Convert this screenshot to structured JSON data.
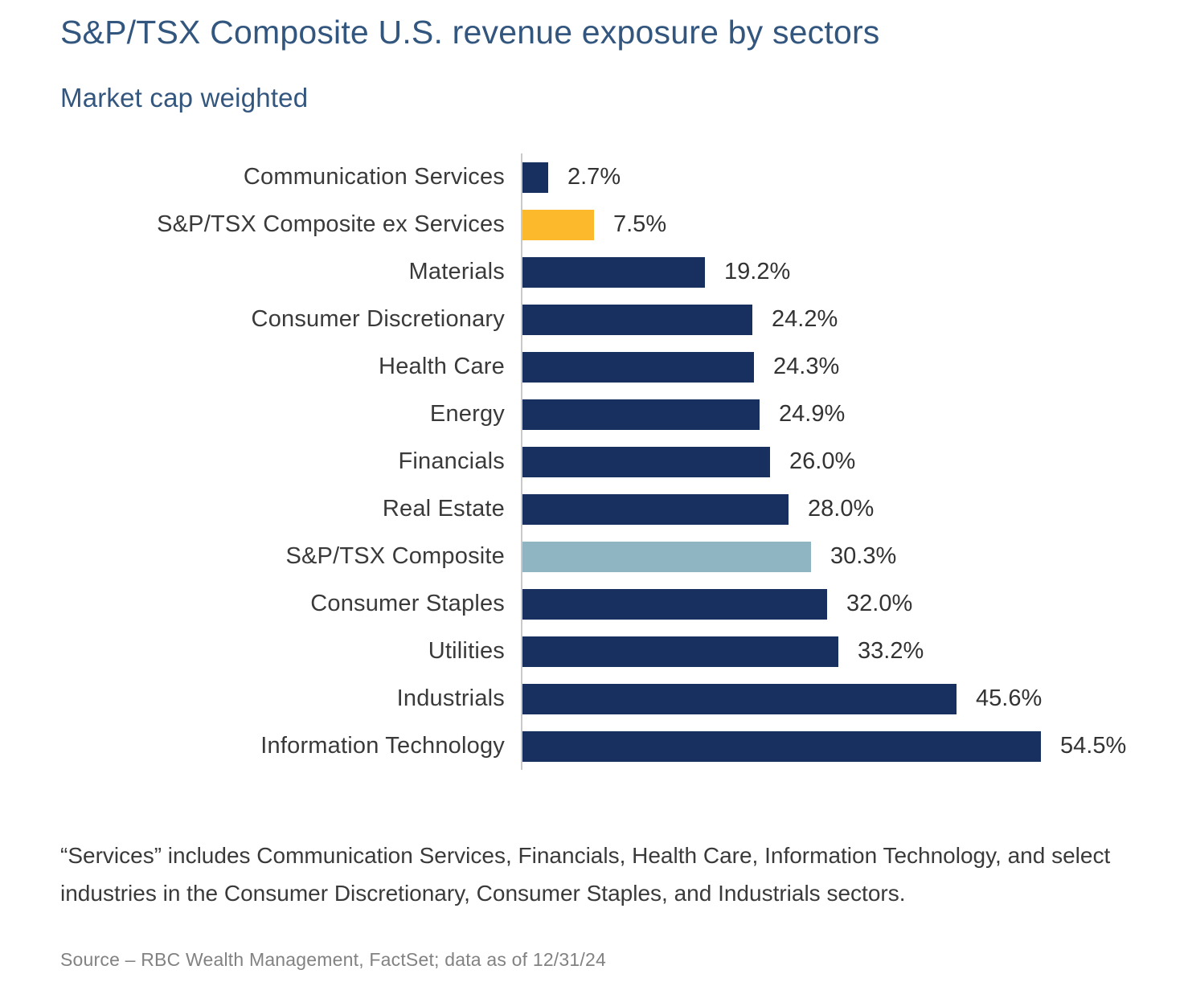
{
  "header": {
    "title": "S&P/TSX Composite U.S. revenue exposure by sectors",
    "subtitle": "Market cap weighted"
  },
  "chart_data": {
    "type": "bar",
    "orientation": "horizontal",
    "title": "S&P/TSX Composite U.S. revenue exposure by sectors",
    "subtitle": "Market cap weighted",
    "categories": [
      "Communication Services",
      "S&P/TSX Composite ex Services",
      "Materials",
      "Consumer Discretionary",
      "Health Care",
      "Energy",
      "Financials",
      "Real Estate",
      "S&P/TSX Composite",
      "Consumer Staples",
      "Utilities",
      "Industrials",
      "Information Technology"
    ],
    "values": [
      2.7,
      7.5,
      19.2,
      24.2,
      24.3,
      24.9,
      26.0,
      28.0,
      30.3,
      32.0,
      33.2,
      45.6,
      54.5
    ],
    "value_labels": [
      "2.7%",
      "7.5%",
      "19.2%",
      "24.2%",
      "24.3%",
      "24.9%",
      "26.0%",
      "28.0%",
      "30.3%",
      "32.0%",
      "33.2%",
      "45.6%",
      "54.5%"
    ],
    "bar_color_keys": [
      "navy",
      "gold",
      "navy",
      "navy",
      "navy",
      "navy",
      "navy",
      "navy",
      "light_blue",
      "navy",
      "navy",
      "navy",
      "navy"
    ],
    "colors": {
      "navy": "#17305f",
      "gold": "#fcb92b",
      "light_blue": "#8fb5c2",
      "axis_line": "#c9c9c9",
      "title_blue": "#33567e"
    },
    "xlim": [
      0,
      60
    ],
    "grid": false,
    "legend": "none",
    "data_labels": true
  },
  "footnote": "“Services” includes Communication Services, Financials, Health Care, Information Technology, and select industries in the Consumer Discretionary, Consumer Staples, and Industrials sectors.",
  "source": "Source – RBC Wealth Management, FactSet; data as of 12/31/24"
}
